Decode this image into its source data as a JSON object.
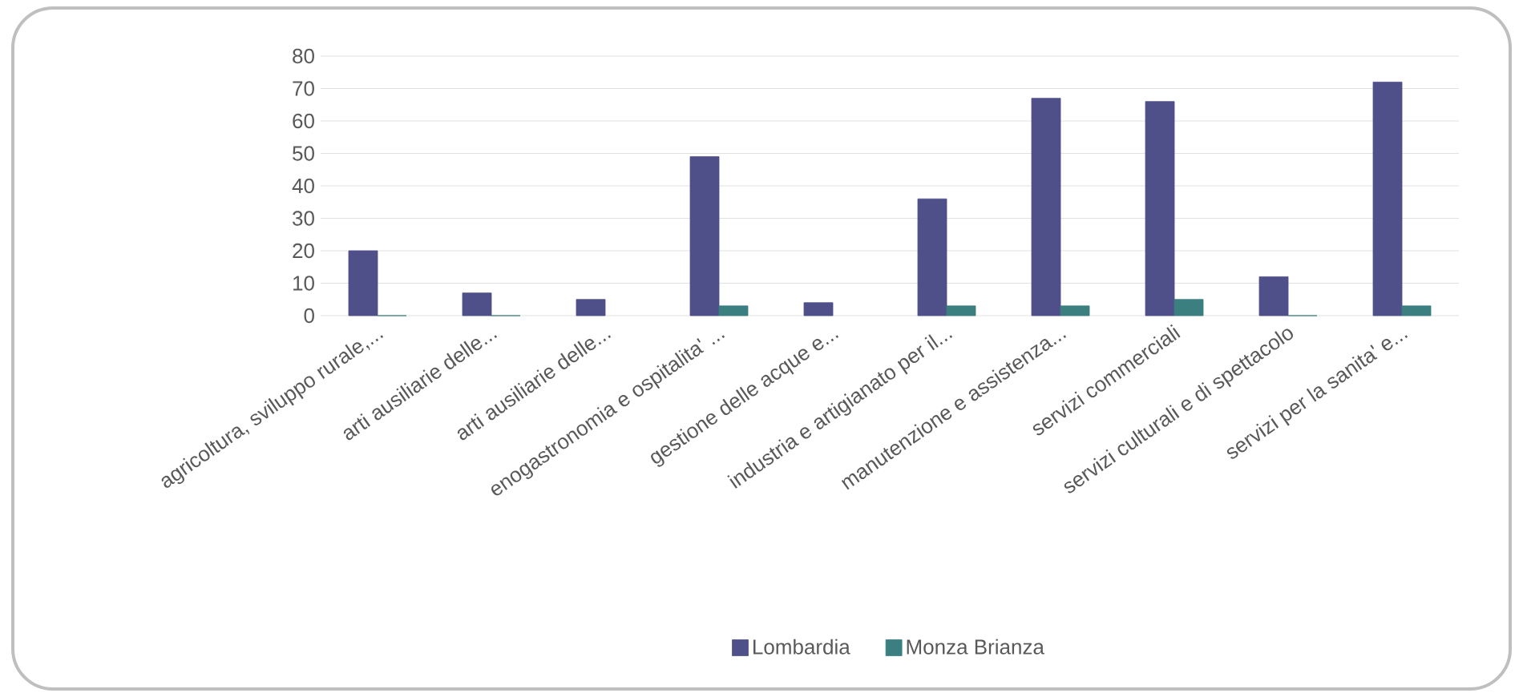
{
  "chart_data": {
    "type": "bar",
    "categories": [
      "agricoltura,  sviluppo rurale,...",
      "arti ausiliarie delle...",
      "arti ausiliarie delle...",
      "enogastronomia e ospitalita' ...",
      "gestione delle acque e...",
      "industria e artigianato per il...",
      "manutenzione e assistenza...",
      "servizi commerciali",
      "servizi culturali e di spettacolo",
      "servizi per la sanita' e..."
    ],
    "series": [
      {
        "name": "Lombardia",
        "color": "#4f4f8a",
        "values": [
          20,
          7,
          5,
          49,
          4,
          36,
          67,
          66,
          12,
          72
        ]
      },
      {
        "name": "Monza Brianza",
        "color": "#3b7f80",
        "values": [
          0,
          0,
          null,
          3,
          null,
          3,
          3,
          5,
          0,
          3
        ]
      }
    ],
    "ylim": [
      0,
      80
    ],
    "yticks": [
      0,
      10,
      20,
      30,
      40,
      50,
      60,
      70,
      80
    ],
    "grid": "y",
    "legend": "bottom"
  }
}
